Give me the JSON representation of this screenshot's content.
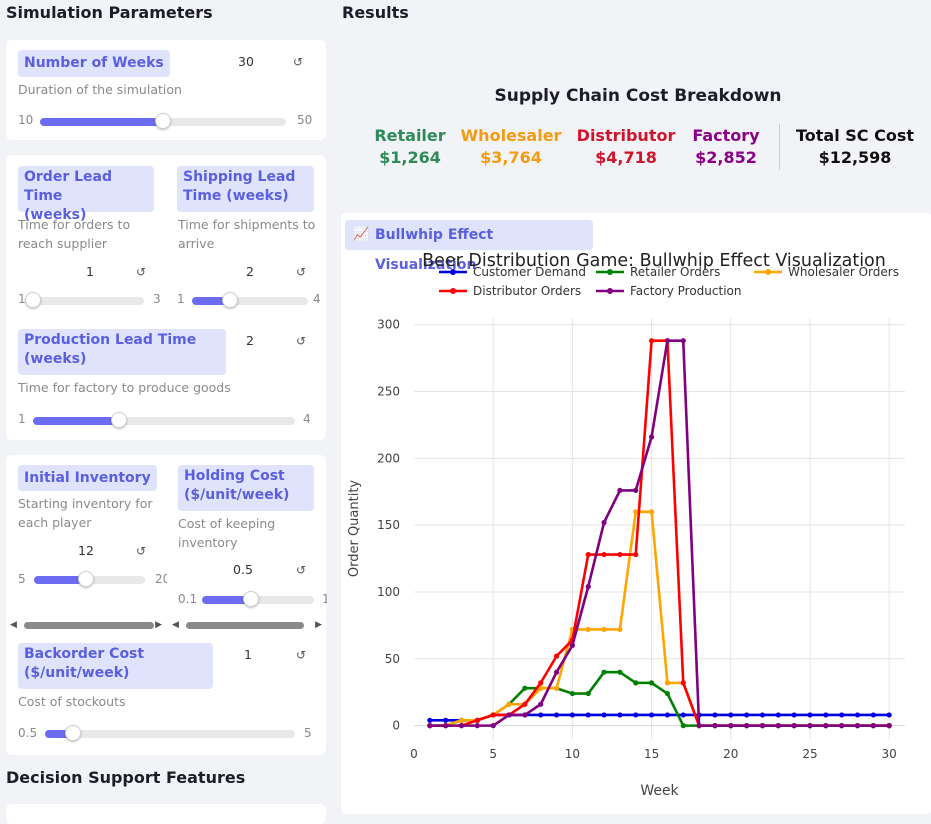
{
  "left": {
    "header": "Simulation Parameters",
    "weeks": {
      "label": "Number of Weeks",
      "help": "Duration of the simulation",
      "value": "30",
      "min": "10",
      "max": "50",
      "fraction": 0.5
    },
    "order_lt": {
      "label_l1": "Order Lead Time",
      "label_l2": "(weeks)",
      "help_l1": "Time for orders to",
      "help_l2": "reach supplier",
      "value": "1",
      "min": "1",
      "max": "3",
      "fraction": 0.0
    },
    "ship_lt": {
      "label_l1": "Shipping Lead",
      "label_l2": "Time (weeks)",
      "help_l1": "Time for shipments to",
      "help_l2": "arrive",
      "value": "2",
      "min": "1",
      "max": "4",
      "fraction": 0.33
    },
    "prod_lt": {
      "label_l1": "Production Lead Time",
      "label_l2": "(weeks)",
      "help": "Time for factory to produce goods",
      "value": "2",
      "min": "1",
      "max": "4",
      "fraction": 0.33
    },
    "init_inv": {
      "label": "Initial Inventory",
      "help_l1": "Starting inventory for",
      "help_l2": "each player",
      "value": "12",
      "min": "5",
      "max": "20",
      "fraction": 0.47
    },
    "holding": {
      "label_l1": "Holding Cost",
      "label_l2": "($/unit/week)",
      "help_l1": "Cost of keeping",
      "help_l2": "inventory",
      "value": "0.5",
      "min": "0.1",
      "max": "1",
      "fraction": 0.44
    },
    "backorder": {
      "label_l1": "Backorder Cost",
      "label_l2": "($/unit/week)",
      "help": "Cost of stockouts",
      "value": "1",
      "min": "0.5",
      "max": "5",
      "fraction": 0.11
    },
    "decision_header": "Decision Support Features",
    "stepper_icon": "refresh-icon"
  },
  "results": {
    "header": "Results",
    "cost_title": "Supply Chain Cost Breakdown",
    "costs": [
      {
        "name": "Retailer",
        "value": "$1,264",
        "color": "#2e8b57"
      },
      {
        "name": "Wholesaler",
        "value": "$3,764",
        "color": "#f39c12"
      },
      {
        "name": "Distributor",
        "value": "$4,718",
        "color": "#d0142c"
      },
      {
        "name": "Factory",
        "value": "$2,852",
        "color": "#8b008b"
      }
    ],
    "total": {
      "name": "Total SC Cost",
      "value": "$12,598"
    },
    "tab_label": "Bullwhip Effect Visualization",
    "tab_icon": "chart-icon"
  },
  "chart_data": {
    "type": "line",
    "title": "Beer Distribution Game: Bullwhip Effect Visualization",
    "xlabel": "Week",
    "ylabel": "Order Quantity",
    "xlim": [
      0,
      31
    ],
    "ylim": [
      -10,
      305
    ],
    "xticks": [
      0,
      5,
      10,
      15,
      20,
      25,
      30
    ],
    "yticks": [
      0,
      50,
      100,
      150,
      200,
      250,
      300
    ],
    "grid": true,
    "legend_position": "top",
    "x": [
      1,
      2,
      3,
      4,
      5,
      6,
      7,
      8,
      9,
      10,
      11,
      12,
      13,
      14,
      15,
      16,
      17,
      18,
      19,
      20,
      21,
      22,
      23,
      24,
      25,
      26,
      27,
      28,
      29,
      30
    ],
    "series": [
      {
        "name": "Customer Demand",
        "color": "#0000e6",
        "values": [
          4,
          4,
          4,
          4,
          8,
          8,
          8,
          8,
          8,
          8,
          8,
          8,
          8,
          8,
          8,
          8,
          8,
          8,
          8,
          8,
          8,
          8,
          8,
          8,
          8,
          8,
          8,
          8,
          8,
          8
        ]
      },
      {
        "name": "Retailer Orders",
        "color": "#008000",
        "values": [
          0,
          0,
          4,
          4,
          8,
          16,
          28,
          28,
          28,
          24,
          24,
          40,
          40,
          32,
          32,
          24,
          0,
          0,
          0,
          0,
          0,
          0,
          0,
          0,
          0,
          0,
          0,
          0,
          0,
          0
        ]
      },
      {
        "name": "Wholesaler Orders",
        "color": "#ffa500",
        "values": [
          0,
          0,
          4,
          4,
          8,
          16,
          16,
          28,
          28,
          72,
          72,
          72,
          72,
          160,
          160,
          32,
          32,
          0,
          0,
          0,
          0,
          0,
          0,
          0,
          0,
          0,
          0,
          0,
          0,
          0
        ]
      },
      {
        "name": "Distributor Orders",
        "color": "#ff0000",
        "values": [
          0,
          0,
          0,
          4,
          8,
          8,
          16,
          32,
          52,
          64,
          128,
          128,
          128,
          128,
          288,
          288,
          32,
          0,
          0,
          0,
          0,
          0,
          0,
          0,
          0,
          0,
          0,
          0,
          0,
          0
        ]
      },
      {
        "name": "Factory Production",
        "color": "#800080",
        "values": [
          0,
          0,
          0,
          0,
          0,
          8,
          8,
          16,
          40,
          60,
          104,
          152,
          176,
          176,
          216,
          288,
          288,
          0,
          0,
          0,
          0,
          0,
          0,
          0,
          0,
          0,
          0,
          0,
          0,
          0
        ]
      }
    ]
  }
}
